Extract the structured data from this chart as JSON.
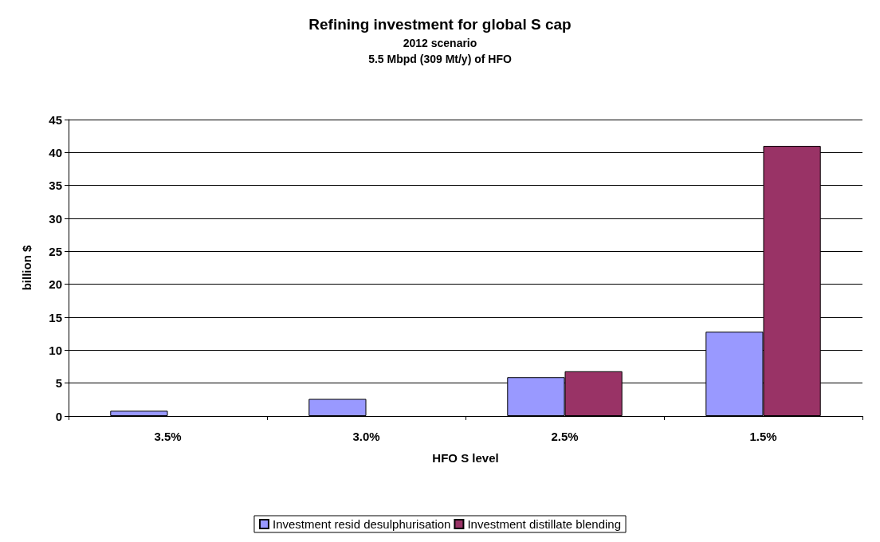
{
  "chart_data": {
    "type": "bar",
    "title": "Refining investment for global S cap",
    "subtitle": "2012 scenario\n5.5 Mbpd (309 Mt/y) of HFO",
    "xlabel": "HFO S level",
    "ylabel": "billion $",
    "categories": [
      "3.5%",
      "3.0%",
      "2.5%",
      "1.5%"
    ],
    "series": [
      {
        "name": "Investment resid desulphurisation",
        "color": "#9999ff",
        "values": [
          0.8,
          2.6,
          5.9,
          12.8
        ]
      },
      {
        "name": "Investment distillate blending",
        "color": "#993366",
        "values": [
          null,
          null,
          6.8,
          41
        ]
      }
    ],
    "ylim": [
      0,
      45
    ],
    "yticks": [
      0,
      5,
      10,
      15,
      20,
      25,
      30,
      35,
      40,
      45
    ],
    "grid": "y",
    "legend": "bottom"
  }
}
